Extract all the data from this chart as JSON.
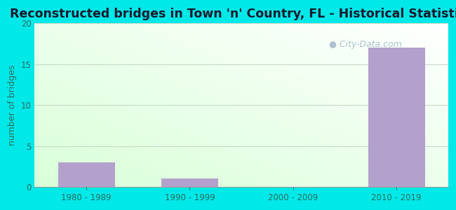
{
  "title": "Reconstructed bridges in Town 'n' Country, FL - Historical Statistics",
  "categories": [
    "1980 - 1989",
    "1990 - 1999",
    "2000 - 2009",
    "2010 - 2019"
  ],
  "values": [
    3,
    1,
    0,
    17
  ],
  "bar_color": "#b3a0cc",
  "bar_width": 0.55,
  "ylim": [
    0,
    20
  ],
  "yticks": [
    0,
    5,
    10,
    15,
    20
  ],
  "ylabel": "number of bridges",
  "outer_bg": "#00e8e8",
  "grid_color": "#c8d8c8",
  "title_color": "#1a1a2e",
  "axis_label_color": "#2d6e5e",
  "tick_color": "#2d6e5e",
  "watermark_text": "City-Data.com",
  "watermark_color": "#a0b8c8",
  "title_fontsize": 12.5,
  "ylabel_fontsize": 9
}
